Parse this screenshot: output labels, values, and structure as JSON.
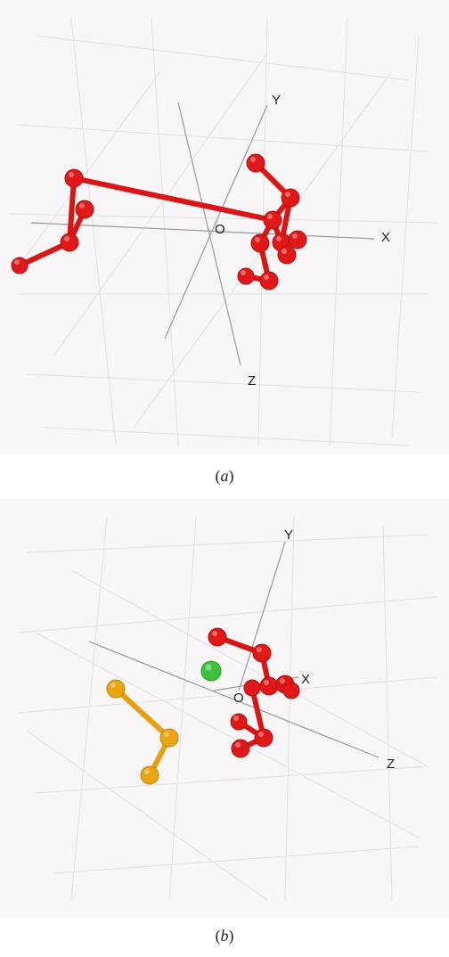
{
  "panel_a": {
    "caption": "(a)",
    "axis_labels": {
      "x": "X",
      "y": "Y",
      "z": "Z",
      "origin": "O"
    },
    "molecule_color": "#e01818"
  },
  "panel_b": {
    "caption": "(b)",
    "axis_labels": {
      "x": "X",
      "y": "Y",
      "z": "Z",
      "origin": "O"
    },
    "molecule_color": "#e01818",
    "fragment_color": "#e8a010",
    "ion_color": "#3cc33c"
  }
}
